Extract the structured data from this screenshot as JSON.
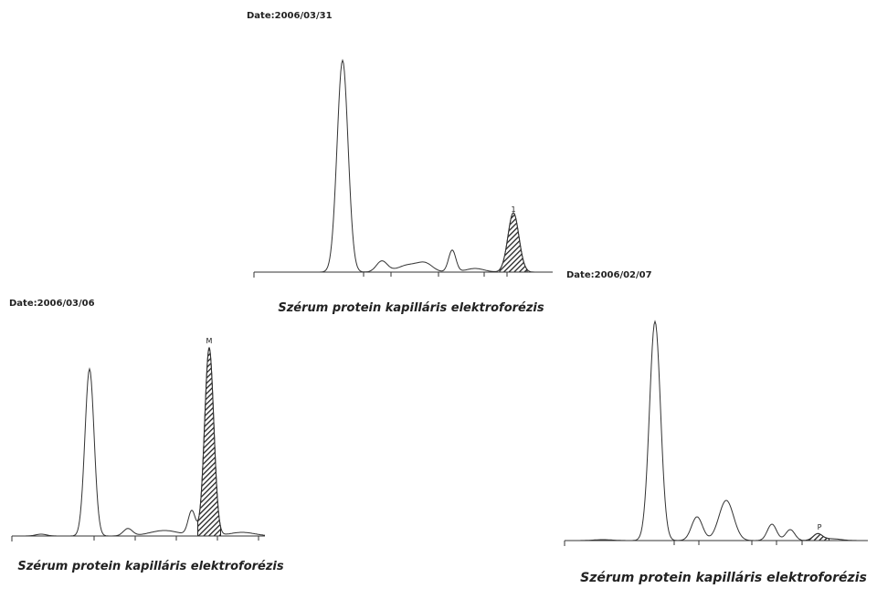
{
  "panels": [
    {
      "date": "Date:2006/03/31",
      "peak_label": "1",
      "caption": "Szérum protein kapilláris elektroforézis"
    },
    {
      "date": "Date:2006/03/06",
      "peak_label": "M",
      "caption": "Szérum protein kapilláris elektroforézis"
    },
    {
      "date": "Date:2006/02/07",
      "peak_label": "P",
      "caption": "Szérum protein kapilláris elektroforézis"
    }
  ]
}
